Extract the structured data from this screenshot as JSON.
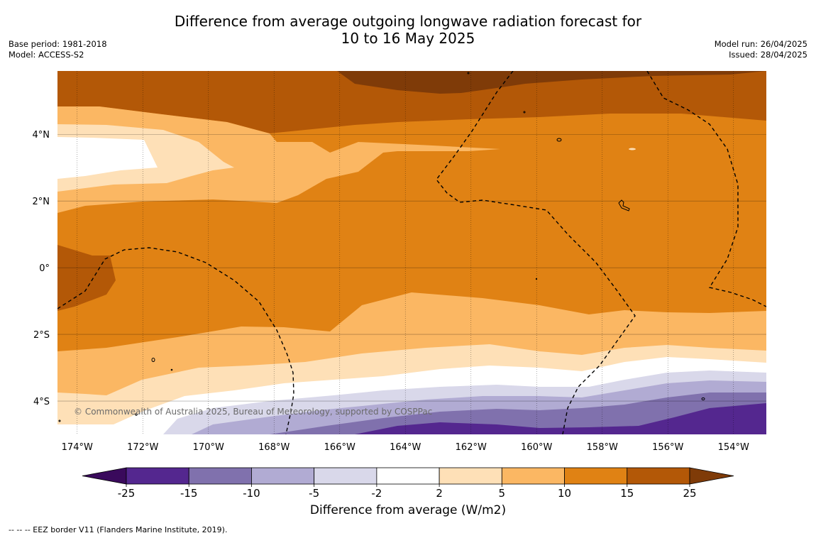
{
  "title": {
    "line1": "Difference from average outgoing longwave radiation forecast for",
    "line2": "10 to 16 May 2025"
  },
  "info_left": {
    "base_period": "Base period: 1981-2018",
    "model": "Model: ACCESS-S2"
  },
  "info_right": {
    "model_run": "Model run: 26/04/2025",
    "issued": "Issued: 28/04/2025"
  },
  "copyright": "© Commonwealth of Australia 2025, Bureau of Meteorology, supported by COSPPac",
  "footer": "-- -- -- EEZ border V11 (Flanders Marine Institute, 2019).",
  "map": {
    "lon_range": [
      -174.6,
      -153.0
    ],
    "lat_range": [
      -5.0,
      5.9
    ],
    "lon_ticks": [
      {
        "value": -174,
        "label": "174°W"
      },
      {
        "value": -172,
        "label": "172°W"
      },
      {
        "value": -170,
        "label": "170°W"
      },
      {
        "value": -168,
        "label": "168°W"
      },
      {
        "value": -166,
        "label": "166°W"
      },
      {
        "value": -164,
        "label": "164°W"
      },
      {
        "value": -162,
        "label": "162°W"
      },
      {
        "value": -160,
        "label": "160°W"
      },
      {
        "value": -158,
        "label": "158°W"
      },
      {
        "value": -156,
        "label": "156°W"
      },
      {
        "value": -154,
        "label": "154°W"
      }
    ],
    "lat_ticks": [
      {
        "value": 4,
        "label": "4°N"
      },
      {
        "value": 2,
        "label": "2°N"
      },
      {
        "value": 0,
        "label": "0°"
      },
      {
        "value": -2,
        "label": "2°S"
      },
      {
        "value": -4,
        "label": "4°S"
      }
    ],
    "grid_lines": true
  },
  "colorbar": {
    "label": "Difference from average (W/m2)",
    "tick_labels": [
      "-25",
      "-15",
      "-10",
      "-5",
      "-2",
      "2",
      "5",
      "10",
      "15",
      "25"
    ],
    "colors": [
      "#3a0a5c",
      "#54278f",
      "#8071ad",
      "#b1abd3",
      "#d9d8ea",
      "#ffffff",
      "#fee0b7",
      "#fbb763",
      "#e08214",
      "#b35807",
      "#7f3b08"
    ]
  }
}
